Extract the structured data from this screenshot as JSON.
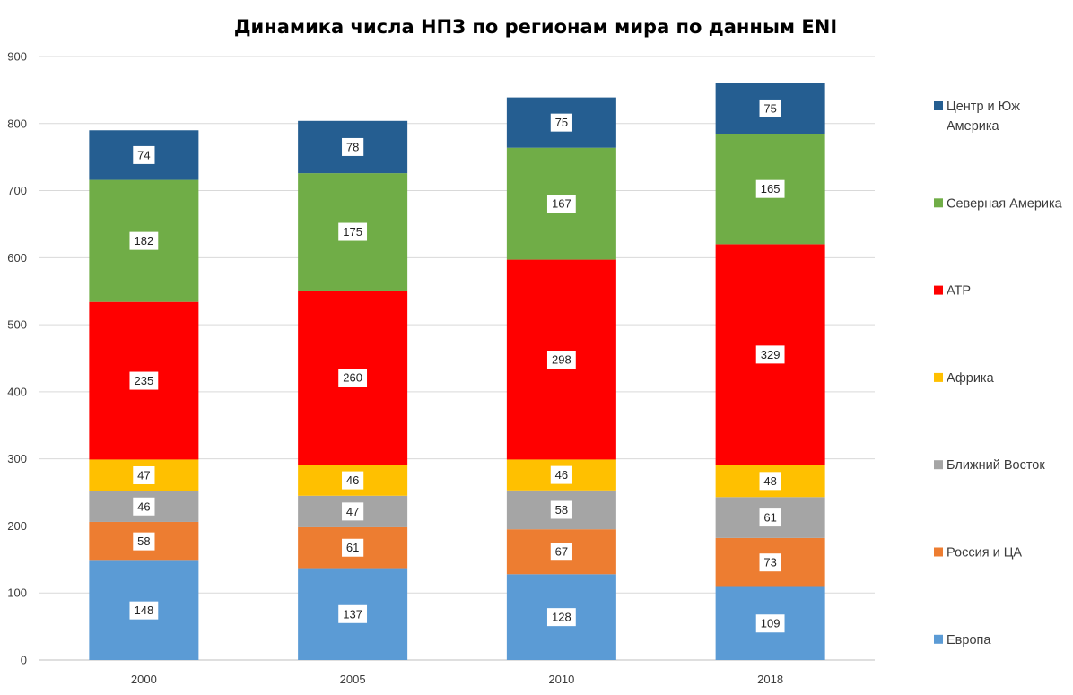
{
  "chart_data": {
    "type": "bar",
    "stacked": true,
    "title": "Динамика числа НПЗ по регионам мира по данным ENI",
    "xlabel": "",
    "ylabel": "",
    "categories": [
      "2000",
      "2005",
      "2010",
      "2018"
    ],
    "ylim": [
      0,
      900
    ],
    "yticks": [
      0,
      100,
      200,
      300,
      400,
      500,
      600,
      700,
      800,
      900
    ],
    "grid": true,
    "legend_position": "right",
    "series": [
      {
        "name": "Европа",
        "color": "#5B9BD5",
        "values": [
          148,
          137,
          128,
          109
        ]
      },
      {
        "name": "Россия и ЦА",
        "color": "#ED7D31",
        "values": [
          58,
          61,
          67,
          73
        ]
      },
      {
        "name": "Ближний Восток",
        "color": "#A5A5A5",
        "values": [
          46,
          47,
          58,
          61
        ]
      },
      {
        "name": "Африка",
        "color": "#FFC000",
        "values": [
          47,
          46,
          46,
          48
        ]
      },
      {
        "name": "АТР",
        "color": "#FF0000",
        "values": [
          235,
          260,
          298,
          329
        ]
      },
      {
        "name": "Северная Америка",
        "color": "#70AD47",
        "values": [
          182,
          175,
          167,
          165
        ]
      },
      {
        "name": "Центр и Юж Америка",
        "color": "#255E91",
        "values": [
          74,
          78,
          75,
          75
        ]
      }
    ]
  }
}
